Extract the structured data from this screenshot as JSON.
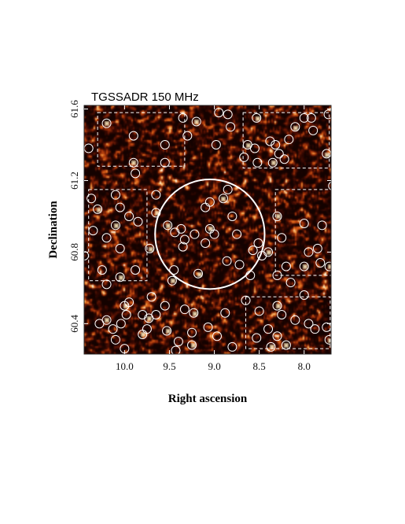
{
  "chart_data": {
    "type": "heatmap",
    "title": "TGSSADR 150 MHz",
    "xlabel": "Right ascension",
    "ylabel": "Declination",
    "xlim": [
      10.45,
      7.7
    ],
    "ylim": [
      60.23,
      61.62
    ],
    "x_axis_reversed": true,
    "x_ticks": [
      "10.0",
      "9.5",
      "9.0",
      "8.5",
      "8.0"
    ],
    "x_tick_values": [
      10.0,
      9.5,
      9.0,
      8.5,
      8.0
    ],
    "y_ticks": [
      "60.4",
      "60.8",
      "61.2",
      "61.6"
    ],
    "y_tick_values": [
      60.4,
      60.8,
      61.2,
      61.6
    ],
    "colormap": [
      "#140200",
      "#3d0a02",
      "#7a1f06",
      "#b8420e",
      "#e06d1e",
      "#f8b866",
      "#fff2d8"
    ],
    "central_circle": {
      "ra": 9.05,
      "dec": 60.9,
      "radius_ra": 0.61
    },
    "boxes": [
      {
        "ra": [
          10.3,
          9.33
        ],
        "dec": [
          61.28,
          61.58
        ]
      },
      {
        "ra": [
          8.68,
          7.72
        ],
        "dec": [
          61.27,
          61.58
        ]
      },
      {
        "ra": [
          10.4,
          9.75
        ],
        "dec": [
          60.64,
          61.15
        ]
      },
      {
        "ra": [
          8.32,
          7.68
        ],
        "dec": [
          60.67,
          61.15
        ]
      },
      {
        "ra": [
          8.65,
          7.71
        ],
        "dec": [
          60.26,
          60.55
        ]
      }
    ],
    "sources": [
      [
        10.2,
        61.52
      ],
      [
        9.9,
        61.45
      ],
      [
        10.4,
        61.38
      ],
      [
        9.55,
        61.4
      ],
      [
        9.9,
        61.3
      ],
      [
        9.3,
        61.45
      ],
      [
        9.55,
        61.3
      ],
      [
        9.88,
        61.24
      ],
      [
        9.2,
        61.53
      ],
      [
        8.95,
        61.58
      ],
      [
        8.85,
        61.57
      ],
      [
        8.82,
        61.5
      ],
      [
        8.63,
        61.4
      ],
      [
        8.67,
        61.33
      ],
      [
        8.98,
        61.4
      ],
      [
        9.35,
        61.55
      ],
      [
        8.53,
        61.55
      ],
      [
        8.38,
        61.42
      ],
      [
        8.32,
        61.4
      ],
      [
        8.28,
        61.35
      ],
      [
        8.35,
        61.3
      ],
      [
        8.22,
        61.32
      ],
      [
        8.52,
        61.3
      ],
      [
        8.55,
        61.38
      ],
      [
        8.1,
        61.5
      ],
      [
        8.0,
        61.55
      ],
      [
        7.9,
        61.48
      ],
      [
        7.73,
        61.57
      ],
      [
        7.75,
        61.35
      ],
      [
        8.17,
        61.43
      ],
      [
        7.92,
        61.55
      ],
      [
        10.37,
        61.1
      ],
      [
        10.3,
        61.04
      ],
      [
        10.1,
        61.12
      ],
      [
        10.05,
        61.05
      ],
      [
        9.95,
        61.0
      ],
      [
        10.1,
        60.95
      ],
      [
        10.35,
        60.92
      ],
      [
        10.2,
        60.88
      ],
      [
        9.85,
        60.97
      ],
      [
        9.72,
        60.82
      ],
      [
        10.05,
        60.82
      ],
      [
        10.25,
        60.7
      ],
      [
        10.2,
        60.62
      ],
      [
        10.05,
        60.66
      ],
      [
        9.88,
        60.7
      ],
      [
        10.45,
        60.78
      ],
      [
        9.65,
        61.12
      ],
      [
        9.65,
        61.02
      ],
      [
        8.85,
        61.15
      ],
      [
        9.05,
        61.08
      ],
      [
        9.1,
        61.05
      ],
      [
        8.9,
        61.1
      ],
      [
        8.8,
        61.0
      ],
      [
        9.22,
        60.9
      ],
      [
        9.1,
        60.85
      ],
      [
        9.05,
        60.93
      ],
      [
        9.0,
        60.9
      ],
      [
        8.75,
        60.9
      ],
      [
        9.35,
        60.83
      ],
      [
        9.18,
        60.68
      ],
      [
        9.45,
        60.7
      ],
      [
        8.72,
        60.73
      ],
      [
        8.86,
        60.75
      ],
      [
        9.52,
        60.95
      ],
      [
        9.44,
        60.91
      ],
      [
        9.33,
        60.87
      ],
      [
        9.37,
        60.93
      ],
      [
        9.47,
        60.64
      ],
      [
        8.51,
        60.85
      ],
      [
        8.57,
        60.81
      ],
      [
        8.47,
        60.78
      ],
      [
        8.3,
        61.0
      ],
      [
        8.25,
        60.88
      ],
      [
        8.2,
        60.72
      ],
      [
        8.15,
        60.63
      ],
      [
        8.0,
        60.72
      ],
      [
        7.95,
        60.8
      ],
      [
        7.85,
        60.82
      ],
      [
        7.82,
        60.74
      ],
      [
        7.72,
        60.72
      ],
      [
        8.0,
        60.96
      ],
      [
        7.8,
        60.95
      ],
      [
        7.68,
        61.17
      ],
      [
        8.4,
        60.8
      ],
      [
        8.6,
        60.67
      ],
      [
        8.3,
        60.67
      ],
      [
        10.28,
        60.4
      ],
      [
        10.2,
        60.42
      ],
      [
        10.13,
        60.37
      ],
      [
        10.1,
        60.31
      ],
      [
        10.04,
        60.4
      ],
      [
        10.0,
        60.5
      ],
      [
        9.95,
        60.52
      ],
      [
        9.98,
        60.45
      ],
      [
        9.8,
        60.45
      ],
      [
        9.73,
        60.43
      ],
      [
        9.65,
        60.45
      ],
      [
        9.55,
        60.5
      ],
      [
        9.33,
        60.48
      ],
      [
        9.53,
        60.36
      ],
      [
        9.4,
        60.3
      ],
      [
        9.25,
        60.35
      ],
      [
        9.07,
        60.38
      ],
      [
        9.23,
        60.46
      ],
      [
        8.88,
        60.46
      ],
      [
        8.97,
        60.33
      ],
      [
        8.8,
        60.27
      ],
      [
        9.25,
        60.28
      ],
      [
        9.43,
        60.25
      ],
      [
        9.75,
        60.37
      ],
      [
        9.7,
        60.55
      ],
      [
        9.8,
        60.34
      ],
      [
        10.0,
        60.26
      ],
      [
        8.65,
        60.53
      ],
      [
        8.5,
        60.47
      ],
      [
        8.3,
        60.5
      ],
      [
        8.25,
        60.45
      ],
      [
        8.1,
        60.42
      ],
      [
        8.3,
        60.33
      ],
      [
        8.2,
        60.28
      ],
      [
        7.95,
        60.4
      ],
      [
        7.88,
        60.37
      ],
      [
        7.75,
        60.38
      ],
      [
        7.72,
        60.31
      ],
      [
        8.0,
        60.56
      ],
      [
        8.4,
        60.37
      ],
      [
        8.53,
        60.32
      ],
      [
        8.37,
        60.27
      ]
    ]
  }
}
